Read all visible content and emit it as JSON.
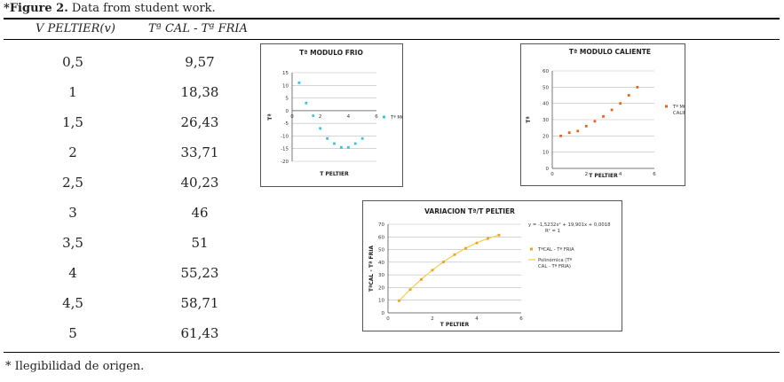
{
  "caption": {
    "star": "*",
    "label": "Figure 2.",
    "text": " Data from student work."
  },
  "table": {
    "headers": [
      "V PELTIER(v)",
      "Tª CAL - Tª FRIA"
    ],
    "rows": [
      [
        "0,5",
        "9,57"
      ],
      [
        "1",
        "18,38"
      ],
      [
        "1,5",
        "26,43"
      ],
      [
        "2",
        "33,71"
      ],
      [
        "2,5",
        "40,23"
      ],
      [
        "3",
        "46"
      ],
      [
        "3,5",
        "51"
      ],
      [
        "4",
        "55,23"
      ],
      [
        "4,5",
        "58,71"
      ],
      [
        "5",
        "61,43"
      ]
    ]
  },
  "footnote": "* Ilegibilidad de origen.",
  "chart_data": [
    {
      "type": "scatter",
      "title": "Tª MODULO FRIO",
      "xlabel": "T PELTIER",
      "ylabel": "Tª",
      "xlim": [
        0,
        6
      ],
      "ylim": [
        -20,
        15
      ],
      "xticks": [
        "0",
        "2",
        "4",
        "6"
      ],
      "yticks": [
        "15",
        "10",
        "5",
        "0",
        "-5",
        "-10",
        "-15",
        "-20"
      ],
      "series": [
        {
          "name": "Tª MODULO FRIO",
          "color": "#33c6e0",
          "x": [
            0.5,
            1,
            1.5,
            2,
            2.5,
            3,
            3.5,
            4,
            4.5,
            5
          ],
          "y": [
            11,
            3,
            -2,
            -7,
            -11,
            -13,
            -14.5,
            -14.5,
            -13,
            -11
          ]
        }
      ]
    },
    {
      "type": "scatter",
      "title": "Tª MODULO CALIENTE",
      "xlabel": "T PELTIER",
      "ylabel": "Tª",
      "xlim": [
        0,
        6
      ],
      "ylim": [
        0,
        60
      ],
      "xticks": [
        "0",
        "2",
        "4",
        "6"
      ],
      "yticks": [
        "60",
        "50",
        "40",
        "30",
        "20",
        "10",
        "0"
      ],
      "series": [
        {
          "name": "Tª MODULO CALIENTE",
          "color": "#e8641e",
          "x": [
            0.5,
            1,
            1.5,
            2,
            2.5,
            3,
            3.5,
            4,
            4.5,
            5
          ],
          "y": [
            20,
            22,
            23,
            26,
            29,
            32,
            36,
            40,
            45,
            50
          ]
        }
      ]
    },
    {
      "type": "scatter",
      "title": "VARIACION Tª/T PELTIER",
      "xlabel": "T PELTIER",
      "ylabel": "TªCAL - Tª FRIA",
      "xlim": [
        0,
        6
      ],
      "ylim": [
        0,
        70
      ],
      "xticks": [
        "0",
        "2",
        "4",
        "6"
      ],
      "yticks": [
        "70",
        "60",
        "50",
        "40",
        "30",
        "20",
        "10",
        "0"
      ],
      "equation": "y = -1,5232x² + 19,901x + 0,0018",
      "r2": "R² = 1",
      "series": [
        {
          "name": "TªCAL - Tª FRIA",
          "color": "#f0a020",
          "x": [
            0.5,
            1,
            1.5,
            2,
            2.5,
            3,
            3.5,
            4,
            4.5,
            5
          ],
          "y": [
            9.57,
            18.38,
            26.43,
            33.71,
            40.23,
            46,
            51,
            55.23,
            58.71,
            61.43
          ]
        },
        {
          "name": "Polinómica (Tª CAL - Tª FRIA)",
          "color": "#f2cf48",
          "fit": [
            -1.5232,
            19.901,
            0.0018
          ]
        }
      ]
    }
  ]
}
